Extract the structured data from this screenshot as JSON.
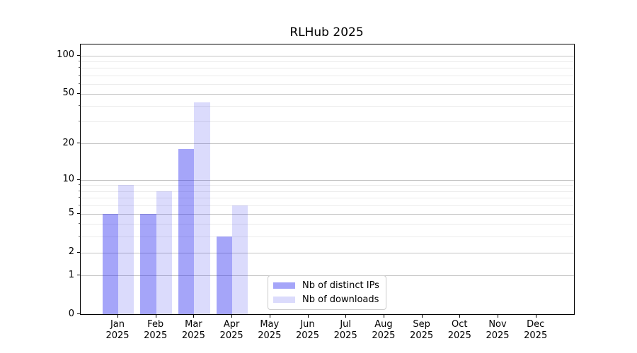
{
  "chart_data": {
    "type": "bar",
    "title": "RLHub 2025",
    "categories": [
      "Jan",
      "Feb",
      "Mar",
      "Apr",
      "May",
      "Jun",
      "Jul",
      "Aug",
      "Sep",
      "Oct",
      "Nov",
      "Dec"
    ],
    "category_year": "2025",
    "series": [
      {
        "name": "Nb of distinct IPs",
        "color": "#2828F06B",
        "values": [
          5,
          5,
          18,
          3,
          0,
          0,
          0,
          0,
          0,
          0,
          0,
          0
        ]
      },
      {
        "name": "Nb of downloads",
        "color": "#2828F02B",
        "values": [
          9,
          8,
          43,
          6,
          0,
          0,
          0,
          0,
          0,
          0,
          0,
          0
        ]
      }
    ],
    "xlabel": "",
    "ylabel": "",
    "yscale": "log1p",
    "ylim": [
      0,
      122
    ],
    "yticks": [
      0,
      1,
      2,
      5,
      10,
      20,
      50,
      100
    ],
    "minor_gridlines": [
      3,
      4,
      6,
      7,
      8,
      9,
      30,
      40,
      60,
      70,
      80,
      90
    ],
    "grid": true,
    "legend_position": "lower-center-inside",
    "colors": {
      "major_grid": "#c3c3c3",
      "minor_grid": "#ebebeb",
      "spine": "#000000",
      "text": "#000000",
      "background": "#ffffff"
    }
  }
}
